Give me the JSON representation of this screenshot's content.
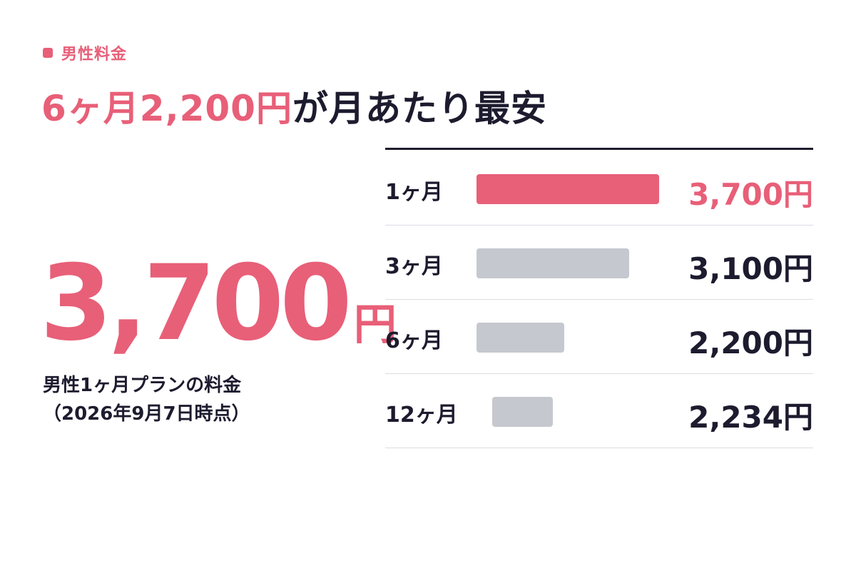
{
  "colors": {
    "accent": "#e85f78",
    "text": "#1d1b2e",
    "bar_muted": "#c6c8cf",
    "divider": "#dcdde2"
  },
  "eyebrow": {
    "label": "男性料金"
  },
  "headline": {
    "highlight": "6ヶ月2,200円",
    "rest": "が月あたり最安"
  },
  "feature": {
    "price": "3,700",
    "unit": "円",
    "caption_line1": "男性1ヶ月プランの料金",
    "caption_line2": "（2026年9月7日時点）"
  },
  "chart_data": {
    "type": "bar",
    "orientation": "horizontal",
    "categories": [
      "1ヶ月",
      "3ヶ月",
      "6ヶ月",
      "12ヶ月"
    ],
    "values": [
      3700,
      3100,
      2200,
      2234
    ],
    "value_labels": [
      "3,700円",
      "3,100円",
      "2,200円",
      "2,234円"
    ],
    "highlight_index": 0,
    "xlim": [
      0,
      3700
    ],
    "grid": false
  }
}
